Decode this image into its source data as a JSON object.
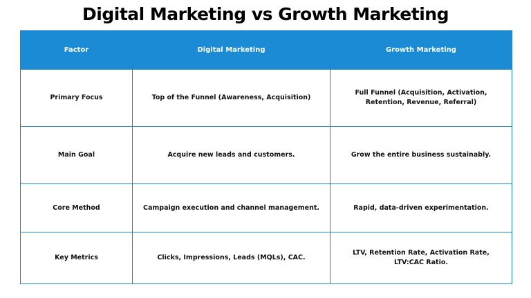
{
  "title": "Digital Marketing vs Growth Marketing",
  "table": {
    "header": [
      "Factor",
      "Digital Marketing",
      "Growth Marketing"
    ],
    "rows": [
      [
        "Primary Focus",
        "Top of the Funnel (Awareness, Acquisition)",
        "Full Funnel (Acquisition, Activation, Retention, Revenue, Referral)"
      ],
      [
        "Main Goal",
        "Acquire new leads and customers.",
        "Grow the entire business sustainably."
      ],
      [
        "Core Method",
        "Campaign execution and channel management.",
        "Rapid, data-driven experimentation."
      ],
      [
        "Key Metrics",
        "Clicks, Impressions, Leads (MQLs), CAC.",
        "LTV, Retention Rate, Activation Rate, LTV:CAC Ratio."
      ]
    ]
  }
}
